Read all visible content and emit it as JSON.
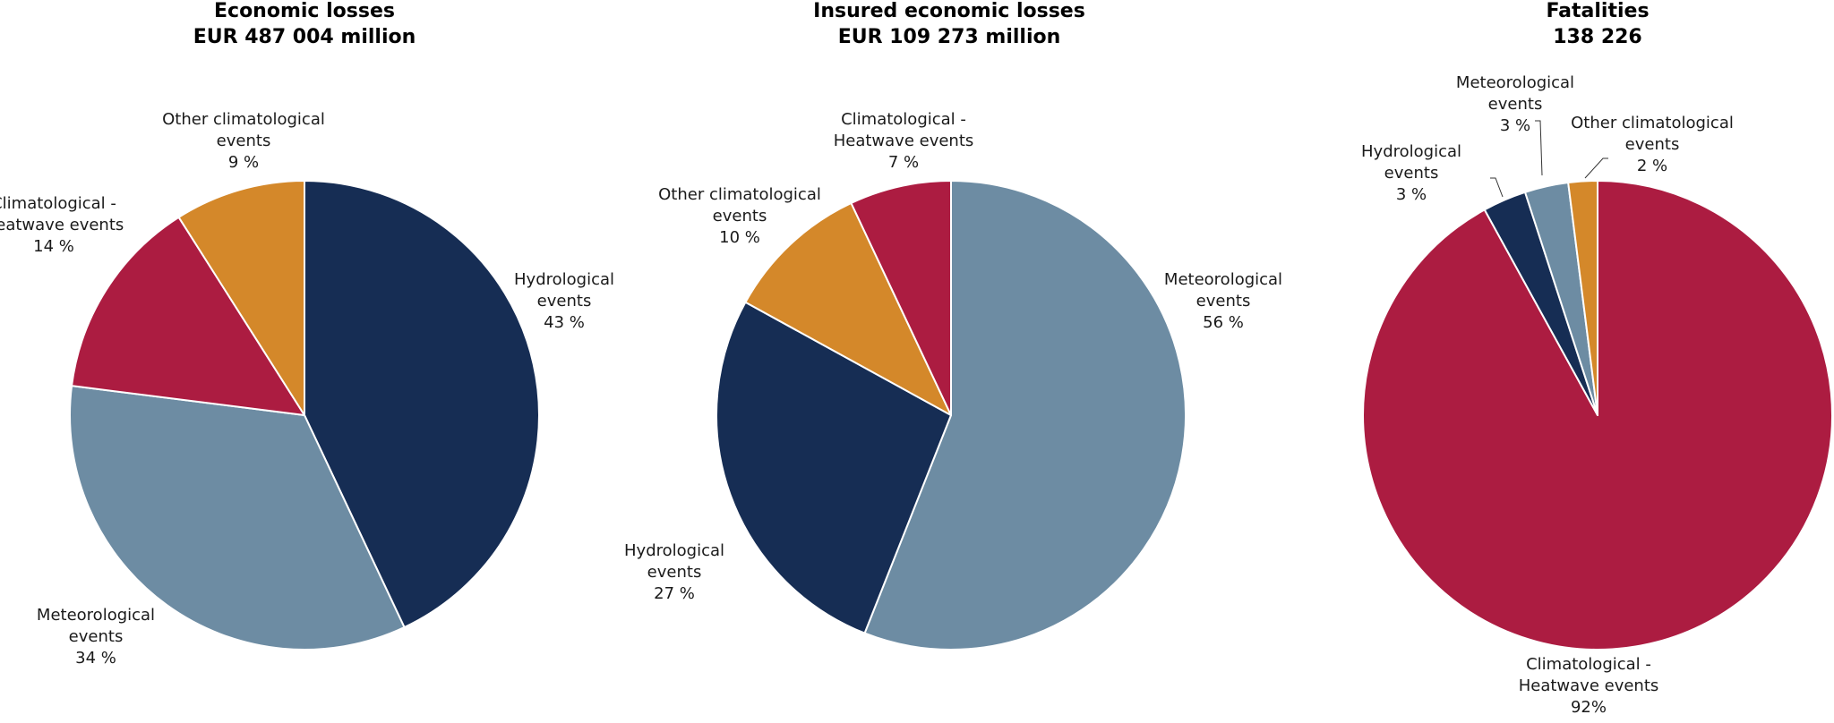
{
  "chart_data": [
    {
      "type": "pie",
      "title": "Economic losses",
      "subtitle": "EUR 487 004 million",
      "start_angle": 0,
      "slices": [
        {
          "name": "Hydrological events",
          "label": [
            "Hydrological",
            "events",
            "43 %"
          ],
          "value": 43,
          "color": "#162d54"
        },
        {
          "name": "Meteorological events",
          "label": [
            "Meteorological",
            "events",
            "34 %"
          ],
          "value": 34,
          "color": "#6d8ca3"
        },
        {
          "name": "Climatological - Heatwave events",
          "label": [
            "Climatological -",
            "Heatwave events",
            "14 %"
          ],
          "value": 14,
          "color": "#ac1c41"
        },
        {
          "name": "Other climatological events",
          "label": [
            "Other climatological",
            "events",
            "9 %"
          ],
          "value": 9,
          "color": "#d4882a"
        }
      ]
    },
    {
      "type": "pie",
      "title": "Insured economic losses",
      "subtitle": "EUR 109 273 million",
      "start_angle": 0,
      "slices": [
        {
          "name": "Meteorological events",
          "label": [
            "Meteorological",
            "events",
            "56 %"
          ],
          "value": 56,
          "color": "#6d8ca3"
        },
        {
          "name": "Hydrological events",
          "label": [
            "Hydrological",
            "events",
            "27 %"
          ],
          "value": 27,
          "color": "#162d54"
        },
        {
          "name": "Other climatological events",
          "label": [
            "Other climatological",
            "events",
            "10 %"
          ],
          "value": 10,
          "color": "#d4882a"
        },
        {
          "name": "Climatological - Heatwave events",
          "label": [
            "Climatological -",
            "Heatwave events",
            "7 %"
          ],
          "value": 7,
          "color": "#ac1c41"
        }
      ]
    },
    {
      "type": "pie",
      "title": "Fatalities",
      "subtitle": "138 226",
      "start_angle": 0,
      "slices": [
        {
          "name": "Climatological - Heatwave events",
          "label": [
            "Climatological -",
            "Heatwave events",
            "92%"
          ],
          "value": 92,
          "color": "#ac1c41"
        },
        {
          "name": "Hydrological events",
          "label": [
            "Hydrological",
            "events",
            "3 %"
          ],
          "value": 3,
          "color": "#162d54"
        },
        {
          "name": "Meteorological events",
          "label": [
            "Meteorological",
            "events",
            "3 %"
          ],
          "value": 3,
          "color": "#6d8ca3"
        },
        {
          "name": "Other climatological events",
          "label": [
            "Other climatological",
            "events",
            "2 %"
          ],
          "value": 2,
          "color": "#d4882a"
        }
      ]
    }
  ]
}
